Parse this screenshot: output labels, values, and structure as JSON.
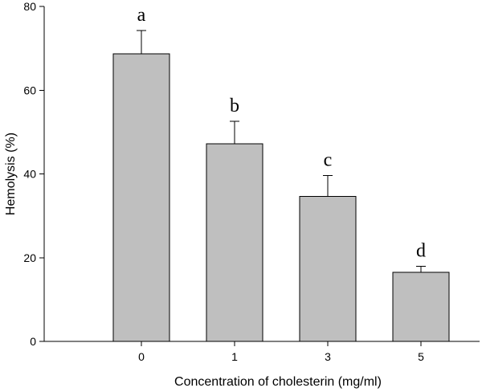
{
  "chart_data": {
    "type": "bar",
    "categories": [
      "0",
      "1",
      "3",
      "5"
    ],
    "values": [
      68.7,
      47.2,
      34.6,
      16.5
    ],
    "errors": [
      5.5,
      5.4,
      5.0,
      1.4
    ],
    "annotations": [
      "a",
      "b",
      "c",
      "d"
    ],
    "xlabel": "Concentration of cholesterin (mg/ml)",
    "ylabel": "Hemolysis (%)",
    "ylim": [
      0,
      80
    ],
    "yticks": [
      0,
      20,
      40,
      60,
      80
    ],
    "grid": false,
    "bar_color": "#bfbfbf"
  }
}
